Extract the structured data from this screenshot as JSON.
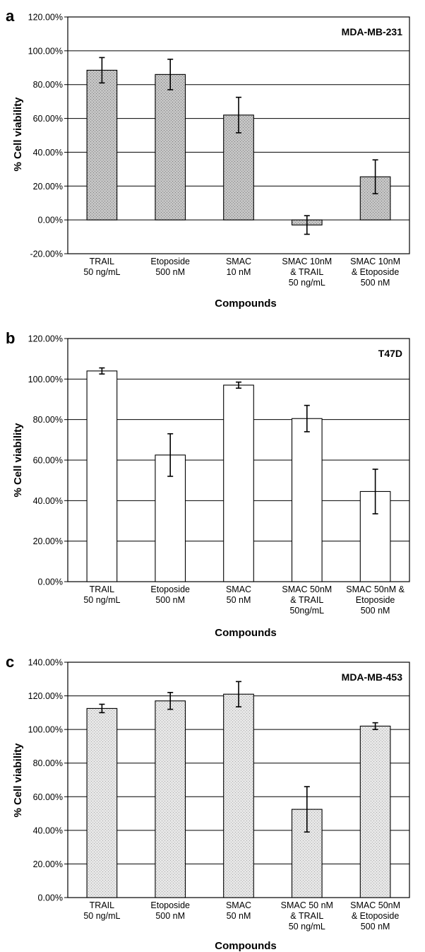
{
  "chart_data": [
    {
      "type": "bar",
      "panel": "a",
      "title": "MDA-MB-231",
      "xlabel": "Compounds",
      "ylabel": "% Cell viability",
      "ylim": [
        -20,
        120
      ],
      "yticks": [
        "-20.00%",
        "0.00%",
        "20.00%",
        "40.00%",
        "60.00%",
        "80.00%",
        "100.00%",
        "120.00%"
      ],
      "categories": [
        [
          "TRAIL",
          "50 ng/mL"
        ],
        [
          "Etoposide",
          "500 nM"
        ],
        [
          "SMAC",
          "10 nM"
        ],
        [
          "SMAC 10nM",
          "& TRAIL",
          "50 ng/mL"
        ],
        [
          "SMAC 10nM",
          "& Etoposide",
          "500 nM"
        ]
      ],
      "values": [
        88.5,
        86,
        62,
        -3,
        25.5
      ],
      "errors": [
        7.5,
        9,
        10.5,
        5.5,
        10
      ],
      "bar_color": "#b0b0b0",
      "grid": true
    },
    {
      "type": "bar",
      "panel": "b",
      "title": "T47D",
      "xlabel": "Compounds",
      "ylabel": "% Cell viability",
      "ylim": [
        0,
        120
      ],
      "yticks": [
        "0.00%",
        "20.00%",
        "40.00%",
        "60.00%",
        "80.00%",
        "100.00%",
        "120.00%"
      ],
      "categories": [
        [
          "TRAIL",
          "50 ng/mL"
        ],
        [
          "Etoposide",
          "500 nM"
        ],
        [
          "SMAC",
          "50 nM"
        ],
        [
          "SMAC 50nM",
          "& TRAIL",
          "50ng/mL"
        ],
        [
          "SMAC 50nM &",
          "Etoposide",
          "500 nM"
        ]
      ],
      "values": [
        104,
        62.5,
        97,
        80.5,
        44.5
      ],
      "errors": [
        1.5,
        10.5,
        1.5,
        6.5,
        11
      ],
      "bar_color": "#ffffff",
      "grid": true
    },
    {
      "type": "bar",
      "panel": "c",
      "title": "MDA-MB-453",
      "xlabel": "Compounds",
      "ylabel": "% Cell viability",
      "ylim": [
        0,
        140
      ],
      "yticks": [
        "0.00%",
        "20.00%",
        "40.00%",
        "60.00%",
        "80.00%",
        "100.00%",
        "120.00%",
        "140.00%"
      ],
      "categories": [
        [
          "TRAIL",
          "50 ng/mL"
        ],
        [
          "Etoposide",
          "500 nM"
        ],
        [
          "SMAC",
          "50 nM"
        ],
        [
          "SMAC 50 nM",
          "& TRAIL",
          "50 ng/mL"
        ],
        [
          "SMAC 50nM",
          "& Etoposide",
          "500 nM"
        ]
      ],
      "values": [
        112.5,
        117,
        121,
        52.5,
        102
      ],
      "errors": [
        2.5,
        5,
        7.5,
        13.5,
        2
      ],
      "bar_color": "#d8d8d8",
      "grid": true
    }
  ]
}
